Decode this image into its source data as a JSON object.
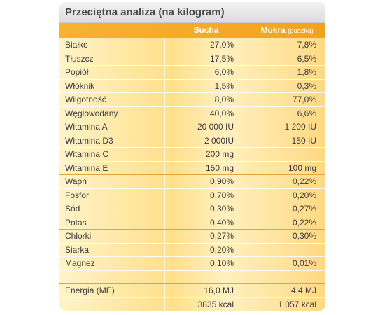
{
  "title": "Przeciętna analiza (na kilogram)",
  "columns": {
    "sucha": "Sucha",
    "mokra": "Mokra",
    "mokra_sub": "(puszka)"
  },
  "rows": [
    {
      "name": "Białko",
      "sucha": "27,0%",
      "mokra": "7,8%"
    },
    {
      "name": "Tłuszcz",
      "sucha": "17,5%",
      "mokra": "6,5%"
    },
    {
      "name": "Popiół",
      "sucha": "6,0%",
      "mokra": "1,8%"
    },
    {
      "name": "Włóknik",
      "sucha": "1,5%",
      "mokra": "0,3%"
    },
    {
      "name": "Wilgotność",
      "sucha": "8,0%",
      "mokra": "77,0%"
    },
    {
      "name": "Węglowodany",
      "sucha": "40,0%",
      "mokra": "6,6%"
    },
    {
      "name": "Witamina A",
      "sucha": "20 000 IU",
      "mokra": "1 200 IU"
    },
    {
      "name": "Witamina D3",
      "sucha": "2 000IU",
      "mokra": "150 IU"
    },
    {
      "name": "Witamina C",
      "sucha": "200 mg",
      "mokra": ""
    },
    {
      "name": "Witamina E",
      "sucha": "150 mg",
      "mokra": "100 mg"
    },
    {
      "name": "Wapń",
      "sucha": "0,90%",
      "mokra": "0,22%"
    },
    {
      "name": "Fosfor",
      "sucha": "0.70%",
      "mokra": "0,20%"
    },
    {
      "name": "Sód",
      "sucha": "0,30%",
      "mokra": "0,27%"
    },
    {
      "name": "Potas",
      "sucha": "0,40%",
      "mokra": "0,22%"
    },
    {
      "name": "Chlorki",
      "sucha": "0,27%",
      "mokra": "0,30%"
    },
    {
      "name": "Siarka",
      "sucha": "0,20%",
      "mokra": ""
    },
    {
      "name": "Magnez",
      "sucha": "0,10%",
      "mokra": "0,01%"
    },
    {
      "name": "",
      "sucha": "",
      "mokra": ""
    },
    {
      "name": "Energia (ME)",
      "sucha": "16,0 MJ",
      "mokra": "4,4 MJ"
    },
    {
      "name": "",
      "sucha": "3835 kcal",
      "mokra": "1 057 kcal"
    }
  ]
}
